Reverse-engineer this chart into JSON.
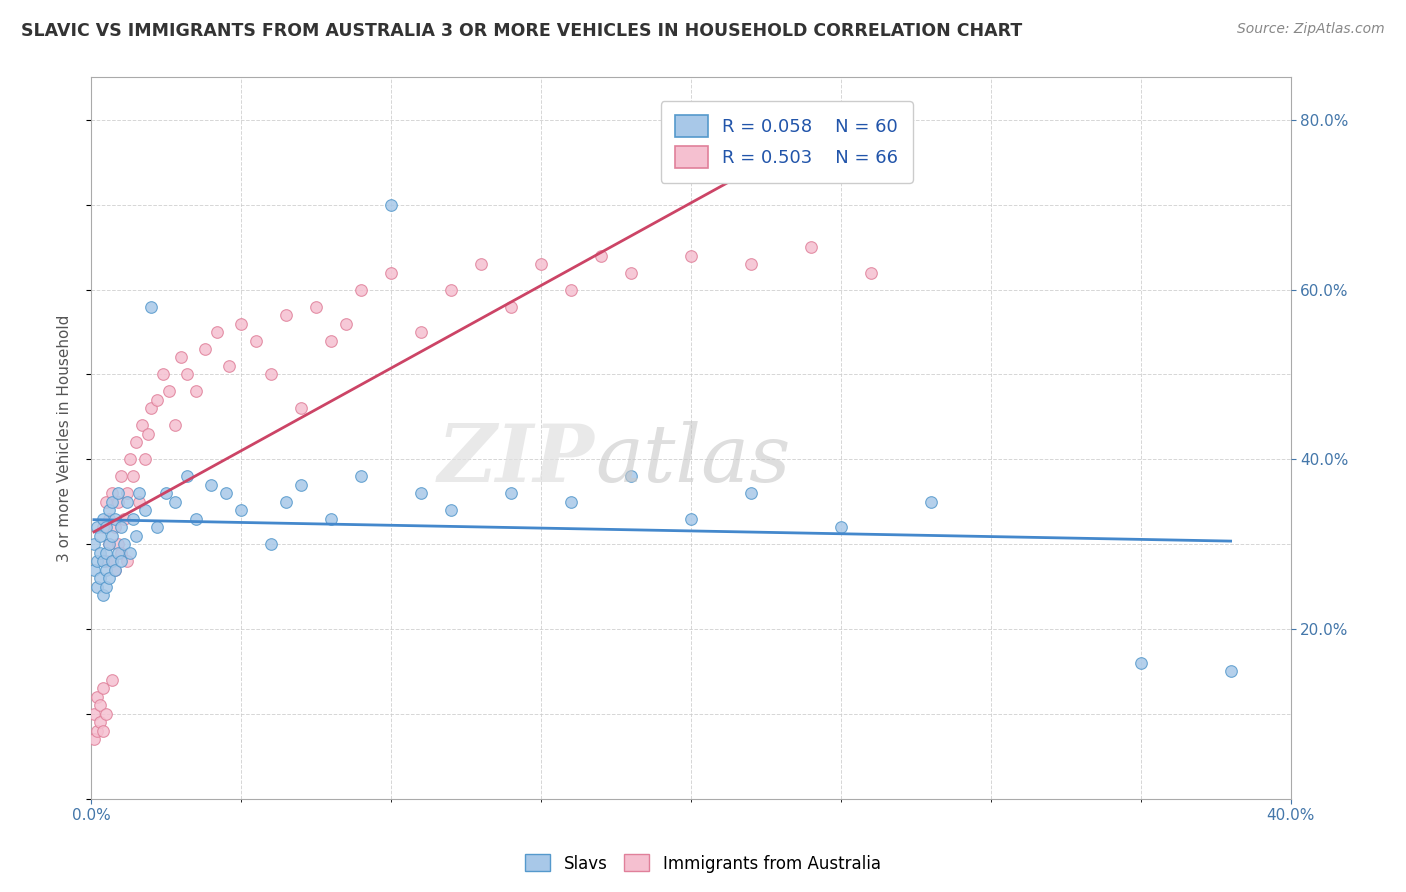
{
  "title": "SLAVIC VS IMMIGRANTS FROM AUSTRALIA 3 OR MORE VEHICLES IN HOUSEHOLD CORRELATION CHART",
  "source": "Source: ZipAtlas.com",
  "ylabel": "3 or more Vehicles in Household",
  "xmin": 0.0,
  "xmax": 0.4,
  "ymin": 0.0,
  "ymax": 0.85,
  "yticks": [
    0.2,
    0.4,
    0.6,
    0.8
  ],
  "legend1_R": "R = 0.058",
  "legend1_N": "N = 60",
  "legend2_R": "R = 0.503",
  "legend2_N": "N = 66",
  "slavs_color": "#a8c8e8",
  "slavs_edge_color": "#5599cc",
  "immigrants_color": "#f5c0d0",
  "immigrants_edge_color": "#e0809a",
  "trend_slavs_color": "#4488cc",
  "trend_immigrants_color": "#cc4466",
  "slavs_x": [
    0.001,
    0.001,
    0.002,
    0.002,
    0.002,
    0.003,
    0.003,
    0.003,
    0.004,
    0.004,
    0.004,
    0.005,
    0.005,
    0.005,
    0.005,
    0.006,
    0.006,
    0.006,
    0.007,
    0.007,
    0.007,
    0.008,
    0.008,
    0.009,
    0.009,
    0.01,
    0.01,
    0.011,
    0.012,
    0.013,
    0.014,
    0.015,
    0.016,
    0.018,
    0.02,
    0.022,
    0.025,
    0.028,
    0.032,
    0.035,
    0.04,
    0.045,
    0.05,
    0.06,
    0.065,
    0.07,
    0.08,
    0.09,
    0.1,
    0.11,
    0.12,
    0.14,
    0.16,
    0.18,
    0.2,
    0.22,
    0.25,
    0.28,
    0.35,
    0.38
  ],
  "slavs_y": [
    0.27,
    0.3,
    0.25,
    0.28,
    0.32,
    0.26,
    0.29,
    0.31,
    0.24,
    0.28,
    0.33,
    0.25,
    0.29,
    0.27,
    0.32,
    0.26,
    0.3,
    0.34,
    0.28,
    0.31,
    0.35,
    0.27,
    0.33,
    0.29,
    0.36,
    0.28,
    0.32,
    0.3,
    0.35,
    0.29,
    0.33,
    0.31,
    0.36,
    0.34,
    0.58,
    0.32,
    0.36,
    0.35,
    0.38,
    0.33,
    0.37,
    0.36,
    0.34,
    0.3,
    0.35,
    0.37,
    0.33,
    0.38,
    0.7,
    0.36,
    0.34,
    0.36,
    0.35,
    0.38,
    0.33,
    0.36,
    0.32,
    0.35,
    0.16,
    0.15
  ],
  "immigrants_x": [
    0.001,
    0.001,
    0.002,
    0.002,
    0.003,
    0.003,
    0.004,
    0.004,
    0.004,
    0.005,
    0.005,
    0.005,
    0.006,
    0.006,
    0.007,
    0.007,
    0.007,
    0.008,
    0.008,
    0.009,
    0.009,
    0.01,
    0.01,
    0.011,
    0.012,
    0.012,
    0.013,
    0.014,
    0.015,
    0.016,
    0.017,
    0.018,
    0.019,
    0.02,
    0.022,
    0.024,
    0.026,
    0.028,
    0.03,
    0.032,
    0.035,
    0.038,
    0.042,
    0.046,
    0.05,
    0.055,
    0.06,
    0.065,
    0.07,
    0.075,
    0.08,
    0.085,
    0.09,
    0.1,
    0.11,
    0.12,
    0.13,
    0.14,
    0.15,
    0.16,
    0.17,
    0.18,
    0.2,
    0.22,
    0.24,
    0.26
  ],
  "immigrants_y": [
    0.07,
    0.1,
    0.08,
    0.12,
    0.09,
    0.11,
    0.13,
    0.08,
    0.32,
    0.28,
    0.35,
    0.1,
    0.3,
    0.33,
    0.28,
    0.36,
    0.14,
    0.32,
    0.27,
    0.3,
    0.35,
    0.29,
    0.38,
    0.33,
    0.36,
    0.28,
    0.4,
    0.38,
    0.42,
    0.35,
    0.44,
    0.4,
    0.43,
    0.46,
    0.47,
    0.5,
    0.48,
    0.44,
    0.52,
    0.5,
    0.48,
    0.53,
    0.55,
    0.51,
    0.56,
    0.54,
    0.5,
    0.57,
    0.46,
    0.58,
    0.54,
    0.56,
    0.6,
    0.62,
    0.55,
    0.6,
    0.63,
    0.58,
    0.63,
    0.6,
    0.64,
    0.62,
    0.64,
    0.63,
    0.65,
    0.62
  ]
}
